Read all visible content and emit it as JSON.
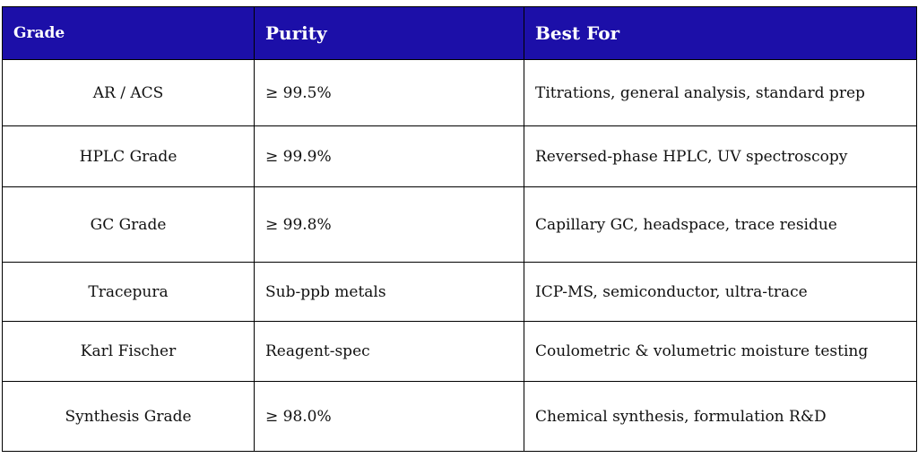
{
  "table": {
    "headers": {
      "grade": "Grade",
      "purity": "Purity",
      "best_for": "Best For"
    },
    "header_color": "#1c0fa8",
    "rows": [
      {
        "grade": "AR / ACS",
        "purity": "≥ 99.5%",
        "best_for": "Titrations, general analysis, standard prep"
      },
      {
        "grade": "HPLC Grade",
        "purity": "≥ 99.9%",
        "best_for": "Reversed-phase HPLC, UV spectroscopy"
      },
      {
        "grade": "GC Grade",
        "purity": "≥ 99.8%",
        "best_for": "Capillary GC, headspace, trace residue"
      },
      {
        "grade": "Tracepura",
        "purity": "Sub-ppb metals",
        "best_for": "ICP-MS, semiconductor, ultra-trace"
      },
      {
        "grade": "Karl Fischer",
        "purity": "Reagent-spec",
        "best_for": "Coulometric & volumetric moisture testing"
      },
      {
        "grade": "Synthesis Grade",
        "purity": "≥ 98.0%",
        "best_for": "Chemical synthesis, formulation R&D"
      }
    ]
  }
}
